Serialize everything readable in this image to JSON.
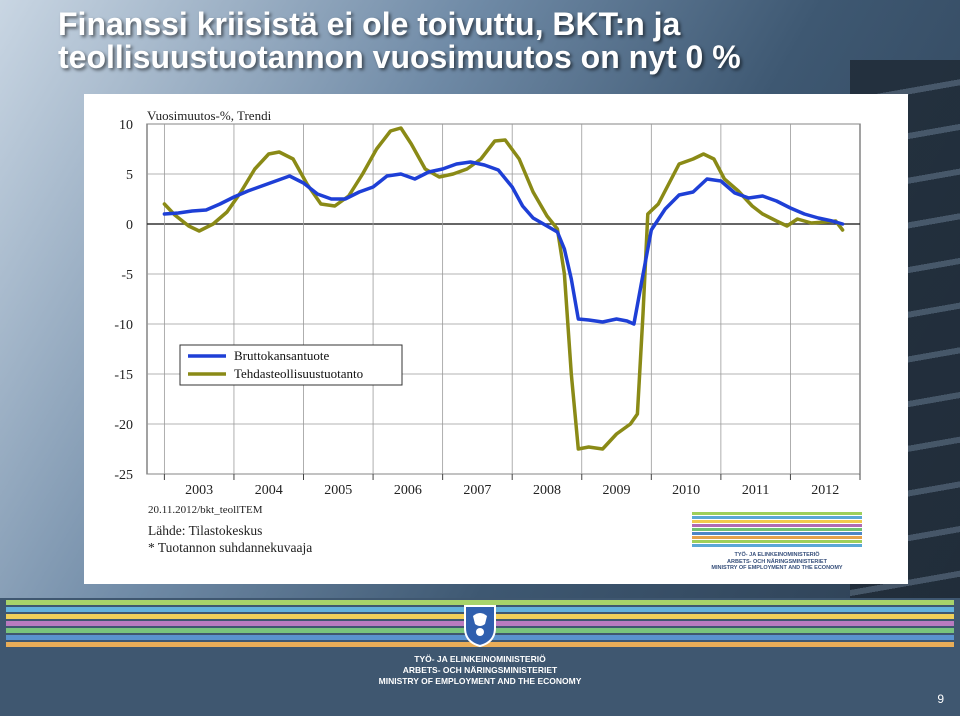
{
  "slide": {
    "title": "Finanssi kriisistä ei ole toivuttu, BKT:n ja teollisuustuotannon vuosimuutos on nyt 0 %",
    "page_number": "9"
  },
  "colors": {
    "gdp": "#1e3fd6",
    "industry": "#8a8a16",
    "title_text": "#ffffff"
  },
  "notes": {
    "date": "20.11.2012/bkt_teollTEM",
    "source": "Lähde: Tilastokeskus",
    "footnote": "* Tuotannon suhdannekuvaaja"
  },
  "ministry": {
    "line1": "TYÖ- JA ELINKEINOMINISTERIÖ",
    "line2": "ARBETS- OCH NÄRINGSMINISTERIET",
    "line3": "MINISTRY OF EMPLOYMENT AND THE ECONOMY"
  },
  "chart_data": {
    "type": "line",
    "title": "Vuosimuutos-%, Trendi",
    "xlabel": "",
    "ylabel": "",
    "xlim": [
      2002.75,
      2013.0
    ],
    "ylim": [
      -25,
      10
    ],
    "yticks": [
      10,
      5,
      0,
      -5,
      -10,
      -15,
      -20,
      -25
    ],
    "xtick_labels": [
      "2003",
      "2004",
      "2005",
      "2006",
      "2007",
      "2008",
      "2009",
      "2010",
      "2011",
      "2012"
    ],
    "grid": true,
    "legend": "left-middle",
    "series": [
      {
        "name": "Bruttokansantuote",
        "color": "#1e3fd6",
        "points": [
          [
            2003.0,
            1.0
          ],
          [
            2003.2,
            1.1
          ],
          [
            2003.4,
            1.3
          ],
          [
            2003.6,
            1.4
          ],
          [
            2003.8,
            2.0
          ],
          [
            2004.0,
            2.7
          ],
          [
            2004.2,
            3.3
          ],
          [
            2004.4,
            3.8
          ],
          [
            2004.6,
            4.3
          ],
          [
            2004.8,
            4.8
          ],
          [
            2005.0,
            4.1
          ],
          [
            2005.2,
            3.0
          ],
          [
            2005.4,
            2.5
          ],
          [
            2005.6,
            2.5
          ],
          [
            2005.8,
            3.2
          ],
          [
            2006.0,
            3.7
          ],
          [
            2006.2,
            4.8
          ],
          [
            2006.4,
            5.0
          ],
          [
            2006.6,
            4.5
          ],
          [
            2006.8,
            5.2
          ],
          [
            2007.0,
            5.5
          ],
          [
            2007.2,
            6.0
          ],
          [
            2007.4,
            6.2
          ],
          [
            2007.6,
            5.9
          ],
          [
            2007.8,
            5.4
          ],
          [
            2008.0,
            3.7
          ],
          [
            2008.15,
            1.8
          ],
          [
            2008.3,
            0.6
          ],
          [
            2008.45,
            0.0
          ],
          [
            2008.65,
            -0.8
          ],
          [
            2008.75,
            -2.5
          ],
          [
            2008.85,
            -5.5
          ],
          [
            2008.95,
            -9.5
          ],
          [
            2009.1,
            -9.6
          ],
          [
            2009.3,
            -9.8
          ],
          [
            2009.5,
            -9.5
          ],
          [
            2009.65,
            -9.7
          ],
          [
            2009.75,
            -10.0
          ],
          [
            2009.85,
            -6.2
          ],
          [
            2010.0,
            -0.6
          ],
          [
            2010.2,
            1.5
          ],
          [
            2010.4,
            2.9
          ],
          [
            2010.6,
            3.2
          ],
          [
            2010.8,
            4.5
          ],
          [
            2011.0,
            4.3
          ],
          [
            2011.2,
            3.1
          ],
          [
            2011.4,
            2.6
          ],
          [
            2011.6,
            2.8
          ],
          [
            2011.8,
            2.3
          ],
          [
            2012.0,
            1.6
          ],
          [
            2012.2,
            1.0
          ],
          [
            2012.4,
            0.6
          ],
          [
            2012.6,
            0.3
          ],
          [
            2012.75,
            0.0
          ]
        ]
      },
      {
        "name": "Tehdasteollisuustuotanto",
        "color": "#8a8a16",
        "points": [
          [
            2003.0,
            2.0
          ],
          [
            2003.15,
            0.9
          ],
          [
            2003.35,
            -0.2
          ],
          [
            2003.5,
            -0.7
          ],
          [
            2003.7,
            0.0
          ],
          [
            2003.9,
            1.2
          ],
          [
            2004.1,
            3.2
          ],
          [
            2004.3,
            5.5
          ],
          [
            2004.5,
            7.0
          ],
          [
            2004.65,
            7.2
          ],
          [
            2004.85,
            6.5
          ],
          [
            2005.05,
            4.0
          ],
          [
            2005.25,
            2.0
          ],
          [
            2005.45,
            1.8
          ],
          [
            2005.65,
            2.8
          ],
          [
            2005.85,
            5.0
          ],
          [
            2006.05,
            7.5
          ],
          [
            2006.25,
            9.3
          ],
          [
            2006.4,
            9.6
          ],
          [
            2006.55,
            8.0
          ],
          [
            2006.75,
            5.5
          ],
          [
            2006.95,
            4.7
          ],
          [
            2007.15,
            5.0
          ],
          [
            2007.35,
            5.5
          ],
          [
            2007.55,
            6.5
          ],
          [
            2007.75,
            8.3
          ],
          [
            2007.9,
            8.4
          ],
          [
            2008.1,
            6.5
          ],
          [
            2008.3,
            3.2
          ],
          [
            2008.5,
            0.8
          ],
          [
            2008.65,
            -0.5
          ],
          [
            2008.75,
            -5.0
          ],
          [
            2008.85,
            -15.0
          ],
          [
            2008.95,
            -22.5
          ],
          [
            2009.1,
            -22.3
          ],
          [
            2009.3,
            -22.5
          ],
          [
            2009.5,
            -21.0
          ],
          [
            2009.7,
            -20.0
          ],
          [
            2009.8,
            -19.0
          ],
          [
            2009.88,
            -9.0
          ],
          [
            2009.95,
            1.0
          ],
          [
            2010.1,
            2.0
          ],
          [
            2010.25,
            4.0
          ],
          [
            2010.4,
            6.0
          ],
          [
            2010.6,
            6.5
          ],
          [
            2010.75,
            7.0
          ],
          [
            2010.9,
            6.5
          ],
          [
            2011.05,
            4.5
          ],
          [
            2011.25,
            3.3
          ],
          [
            2011.45,
            1.8
          ],
          [
            2011.6,
            1.0
          ],
          [
            2011.8,
            0.3
          ],
          [
            2011.95,
            -0.2
          ],
          [
            2012.1,
            0.5
          ],
          [
            2012.3,
            0.1
          ],
          [
            2012.5,
            0.2
          ],
          [
            2012.65,
            0.3
          ],
          [
            2012.75,
            -0.6
          ]
        ]
      }
    ]
  }
}
